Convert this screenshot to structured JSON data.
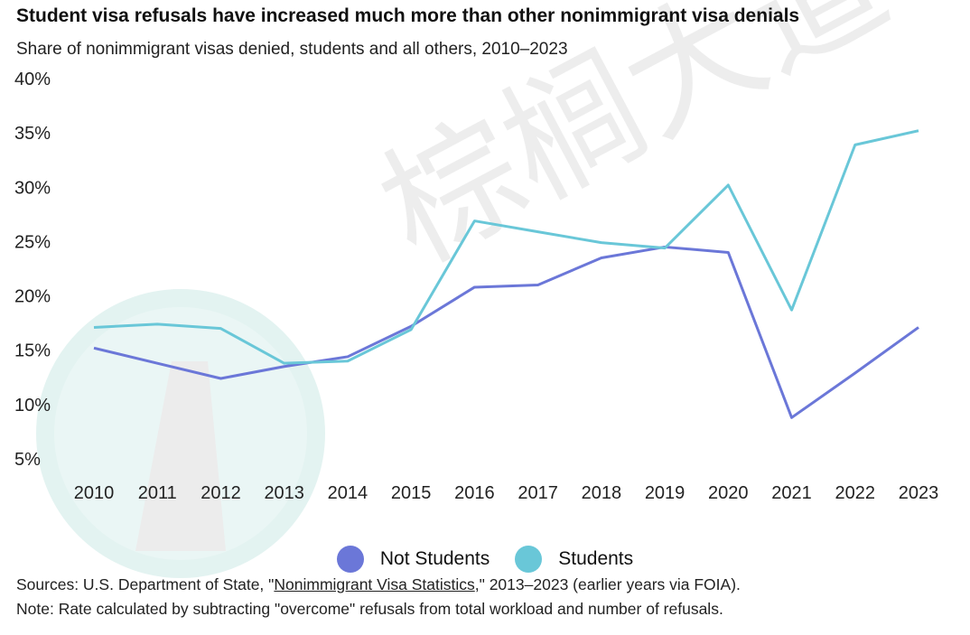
{
  "title": "Student visa refusals have increased much more than other nonimmigrant visa denials",
  "subtitle": "Share of nonimmigrant visas denied, students and all others, 2010–2023",
  "colors": {
    "not_students": "#6b77d8",
    "students": "#69c7d8"
  },
  "chart_data": {
    "type": "line",
    "categories": [
      "2010",
      "2011",
      "2012",
      "2013",
      "2014",
      "2015",
      "2016",
      "2017",
      "2018",
      "2019",
      "2020",
      "2021",
      "2022",
      "2023"
    ],
    "ylim": [
      5,
      40
    ],
    "yticks": [
      5,
      10,
      15,
      20,
      25,
      30,
      35,
      40
    ],
    "ytick_labels": [
      "5%",
      "10%",
      "15%",
      "20%",
      "25%",
      "30%",
      "35%",
      "40%"
    ],
    "series": [
      {
        "name": "Not Students",
        "values": [
          15.2,
          13.8,
          12.4,
          13.5,
          14.4,
          17.2,
          20.8,
          21.0,
          23.5,
          24.5,
          24.0,
          8.8,
          12.9,
          17.1
        ]
      },
      {
        "name": "Students",
        "values": [
          17.1,
          17.4,
          17.0,
          13.8,
          14.0,
          16.9,
          26.9,
          25.9,
          24.9,
          24.4,
          30.2,
          18.7,
          33.9,
          35.2
        ]
      }
    ]
  },
  "legend": {
    "not_students": "Not Students",
    "students": "Students"
  },
  "source": {
    "prefix": "Sources: U.S. Department of State, \"",
    "link": "Nonimmigrant Visa Statistics",
    "suffix": ",\" 2013–2023 (earlier years via FOIA)."
  },
  "note": "Note: Rate calculated by subtracting \"overcome\" refusals from total workload and number of refusals.",
  "watermark": {
    "text": "棕榈大道"
  }
}
